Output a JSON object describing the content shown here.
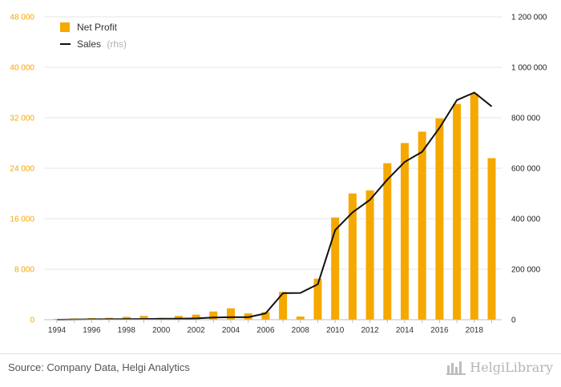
{
  "chart_data": {
    "type": "bar",
    "title": "",
    "x": [
      1994,
      1995,
      1996,
      1997,
      1998,
      1999,
      2000,
      2001,
      2002,
      2003,
      2004,
      2005,
      2006,
      2007,
      2008,
      2009,
      2010,
      2011,
      2012,
      2013,
      2014,
      2015,
      2016,
      2017,
      2018,
      2019
    ],
    "x_tick_labels": [
      "1994",
      "1996",
      "1998",
      "2000",
      "2002",
      "2004",
      "2006",
      "2008",
      "2010",
      "2012",
      "2014",
      "2016",
      "2018"
    ],
    "y_left_ticks": [
      "0",
      "8 000",
      "16 000",
      "24 000",
      "32 000",
      "40 000",
      "48 000"
    ],
    "y_right_ticks": [
      "0",
      "200 000",
      "400 000",
      "600 000",
      "800 000",
      "1 000 000",
      "1 200 000"
    ],
    "ylim_left": [
      0,
      48000
    ],
    "ylim_right": [
      0,
      1200000
    ],
    "grid": true,
    "legend_position": "top-left",
    "series": [
      {
        "name": "Net Profit",
        "type": "bar",
        "axis": "left",
        "color": "#f5a800",
        "values": [
          120,
          200,
          250,
          300,
          450,
          600,
          300,
          600,
          800,
          1300,
          1800,
          1000,
          1200,
          4400,
          500,
          6500,
          16200,
          20000,
          20500,
          24800,
          28000,
          29800,
          31900,
          34200,
          35800,
          25600
        ]
      },
      {
        "name": "Sales",
        "legend_suffix": "(rhs)",
        "type": "line",
        "axis": "right",
        "color": "#111111",
        "values": [
          0,
          1000,
          1500,
          2000,
          2500,
          3000,
          3500,
          4000,
          5000,
          9000,
          10000,
          10000,
          25000,
          105000,
          106000,
          140000,
          355000,
          425000,
          475000,
          555000,
          625000,
          665000,
          760000,
          870000,
          900000,
          845000
        ]
      }
    ]
  },
  "legend": {
    "net_profit_label": "Net Profit",
    "sales_label": "Sales",
    "sales_suffix": "(rhs)"
  },
  "footer": {
    "source": "Source: Company Data, Helgi Analytics",
    "brand": "HelgiLibrary"
  },
  "colors": {
    "bar": "#f5a800",
    "line": "#111111",
    "left_axis_text": "#f5a500",
    "grid": "#e6e6e6",
    "brand": "#b5b5b5"
  }
}
